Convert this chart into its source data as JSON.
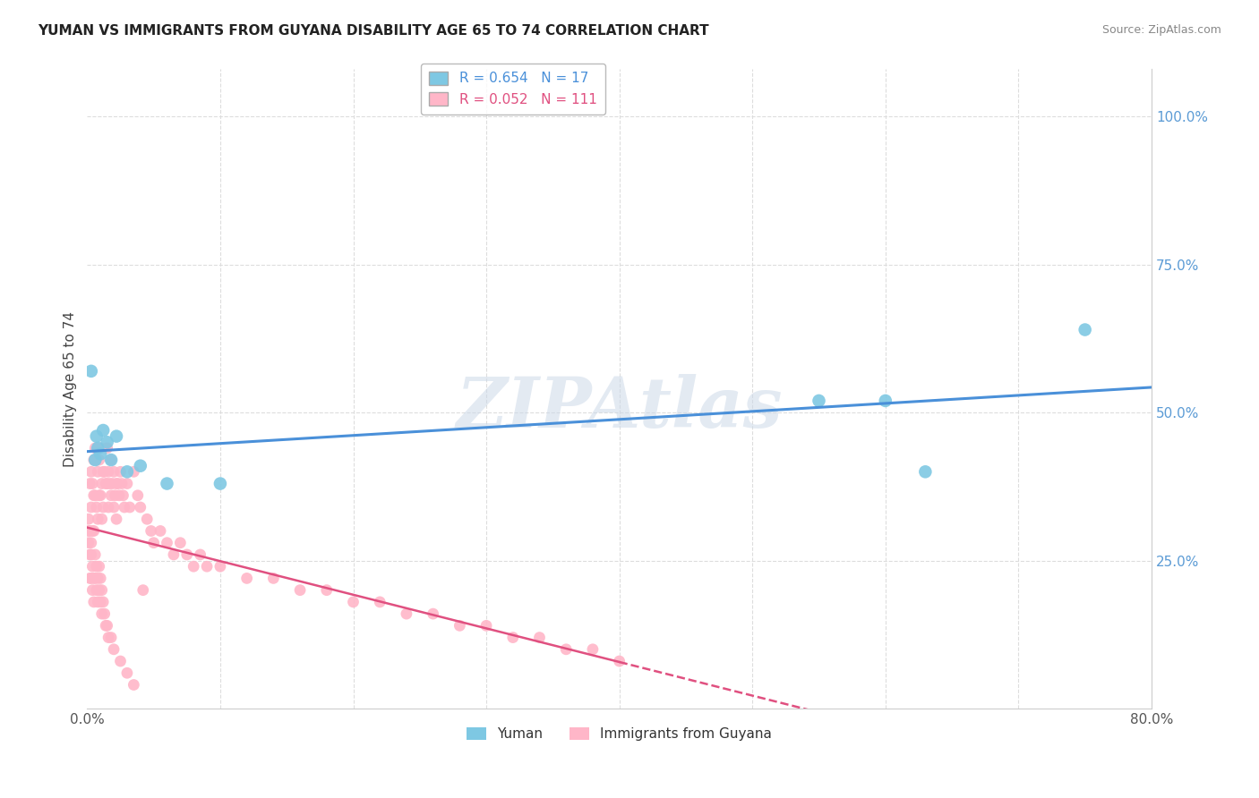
{
  "title": "YUMAN VS IMMIGRANTS FROM GUYANA DISABILITY AGE 65 TO 74 CORRELATION CHART",
  "source": "Source: ZipAtlas.com",
  "ylabel_label": "Disability Age 65 to 74",
  "xmin": 0.0,
  "xmax": 0.8,
  "ymin": 0.0,
  "ymax": 1.08,
  "yticks": [
    0.25,
    0.5,
    0.75,
    1.0
  ],
  "ytick_labels": [
    "25.0%",
    "50.0%",
    "75.0%",
    "100.0%"
  ],
  "xticks": [
    0.0,
    0.1,
    0.2,
    0.3,
    0.4,
    0.5,
    0.6,
    0.7,
    0.8
  ],
  "xtick_labels": [
    "0.0%",
    "",
    "",
    "",
    "",
    "",
    "",
    "",
    "80.0%"
  ],
  "blue_R": 0.654,
  "blue_N": 17,
  "pink_R": 0.052,
  "pink_N": 111,
  "blue_color": "#7ec8e3",
  "pink_color": "#ffb6c8",
  "blue_line_color": "#4a90d9",
  "pink_line_color": "#e05080",
  "watermark": "ZIPAtlas",
  "yuman_points_x": [
    0.003,
    0.006,
    0.007,
    0.008,
    0.01,
    0.012,
    0.015,
    0.018,
    0.022,
    0.03,
    0.04,
    0.06,
    0.1,
    0.55,
    0.6,
    0.63,
    0.75
  ],
  "yuman_points_y": [
    0.57,
    0.42,
    0.46,
    0.44,
    0.43,
    0.47,
    0.45,
    0.42,
    0.46,
    0.4,
    0.41,
    0.38,
    0.38,
    0.52,
    0.52,
    0.4,
    0.64
  ],
  "guyana_points_x": [
    0.001,
    0.001,
    0.002,
    0.002,
    0.003,
    0.003,
    0.003,
    0.004,
    0.004,
    0.005,
    0.005,
    0.005,
    0.006,
    0.006,
    0.007,
    0.007,
    0.008,
    0.008,
    0.009,
    0.009,
    0.01,
    0.01,
    0.011,
    0.011,
    0.012,
    0.012,
    0.013,
    0.014,
    0.015,
    0.015,
    0.016,
    0.016,
    0.017,
    0.018,
    0.018,
    0.019,
    0.02,
    0.02,
    0.021,
    0.022,
    0.022,
    0.023,
    0.024,
    0.025,
    0.026,
    0.027,
    0.028,
    0.03,
    0.032,
    0.035,
    0.038,
    0.04,
    0.042,
    0.045,
    0.048,
    0.05,
    0.055,
    0.06,
    0.065,
    0.07,
    0.075,
    0.08,
    0.085,
    0.09,
    0.1,
    0.12,
    0.14,
    0.16,
    0.18,
    0.2,
    0.22,
    0.24,
    0.26,
    0.28,
    0.3,
    0.32,
    0.34,
    0.36,
    0.38,
    0.4,
    0.001,
    0.002,
    0.002,
    0.003,
    0.003,
    0.004,
    0.004,
    0.005,
    0.005,
    0.006,
    0.006,
    0.007,
    0.007,
    0.008,
    0.008,
    0.009,
    0.009,
    0.01,
    0.01,
    0.011,
    0.011,
    0.012,
    0.013,
    0.014,
    0.015,
    0.016,
    0.018,
    0.02,
    0.025,
    0.03,
    0.035
  ],
  "guyana_points_y": [
    0.32,
    0.28,
    0.38,
    0.3,
    0.4,
    0.34,
    0.28,
    0.38,
    0.3,
    0.42,
    0.36,
    0.3,
    0.44,
    0.36,
    0.42,
    0.34,
    0.4,
    0.32,
    0.42,
    0.36,
    0.44,
    0.36,
    0.38,
    0.32,
    0.4,
    0.34,
    0.4,
    0.38,
    0.44,
    0.38,
    0.4,
    0.34,
    0.38,
    0.42,
    0.36,
    0.38,
    0.4,
    0.34,
    0.36,
    0.38,
    0.32,
    0.38,
    0.36,
    0.4,
    0.38,
    0.36,
    0.34,
    0.38,
    0.34,
    0.4,
    0.36,
    0.34,
    0.2,
    0.32,
    0.3,
    0.28,
    0.3,
    0.28,
    0.26,
    0.28,
    0.26,
    0.24,
    0.26,
    0.24,
    0.24,
    0.22,
    0.22,
    0.2,
    0.2,
    0.18,
    0.18,
    0.16,
    0.16,
    0.14,
    0.14,
    0.12,
    0.12,
    0.1,
    0.1,
    0.08,
    0.3,
    0.26,
    0.22,
    0.26,
    0.22,
    0.24,
    0.2,
    0.22,
    0.18,
    0.26,
    0.22,
    0.24,
    0.2,
    0.22,
    0.18,
    0.24,
    0.2,
    0.22,
    0.18,
    0.2,
    0.16,
    0.18,
    0.16,
    0.14,
    0.14,
    0.12,
    0.12,
    0.1,
    0.08,
    0.06,
    0.04
  ]
}
